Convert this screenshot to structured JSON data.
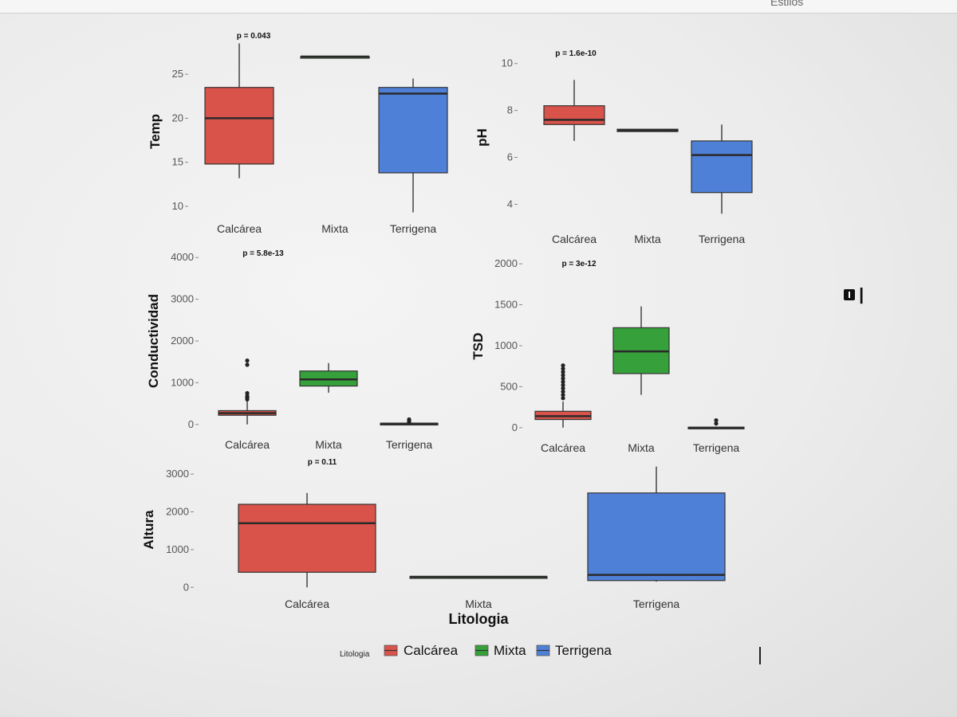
{
  "window": {
    "styles_label": "Estilos"
  },
  "colors": {
    "Calcárea": "#d9534a",
    "Mixta": "#36a03a",
    "Terrigena": "#4f80d8"
  },
  "chart_data": [
    {
      "type": "box",
      "ylabel": "Temp",
      "pvalue_label": "p = 0.043",
      "categories": [
        "Calcárea",
        "Mixta",
        "Terrigena"
      ],
      "yticks": [
        10,
        15,
        20,
        25
      ],
      "ylim": [
        9,
        28
      ],
      "boxes": [
        {
          "category": "Calcárea",
          "min": 13.2,
          "q1": 14.8,
          "median": 20.0,
          "q3": 23.5,
          "max": 28.5,
          "outliers": []
        },
        {
          "category": "Mixta",
          "min": 27.0,
          "q1": 27.0,
          "median": 27.0,
          "q3": 27.0,
          "max": 27.0,
          "outliers": []
        },
        {
          "category": "Terrigena",
          "min": 9.3,
          "q1": 13.8,
          "median": 22.8,
          "q3": 23.5,
          "max": 24.5,
          "outliers": []
        }
      ]
    },
    {
      "type": "box",
      "ylabel": "pH",
      "pvalue_label": "p = 1.6e-10",
      "categories": [
        "Calcárea",
        "Mixta",
        "Terrigena"
      ],
      "yticks": [
        4,
        6,
        8,
        10
      ],
      "ylim": [
        3.2,
        10.5
      ],
      "boxes": [
        {
          "category": "Calcárea",
          "min": 6.7,
          "q1": 7.4,
          "median": 7.6,
          "q3": 8.2,
          "max": 9.3,
          "outliers": []
        },
        {
          "category": "Mixta",
          "min": 7.1,
          "q1": 7.1,
          "median": 7.15,
          "q3": 7.2,
          "max": 7.2,
          "outliers": []
        },
        {
          "category": "Terrigena",
          "min": 3.6,
          "q1": 4.5,
          "median": 6.1,
          "q3": 6.7,
          "max": 7.4,
          "outliers": []
        }
      ]
    },
    {
      "type": "box",
      "ylabel": "Conductividad",
      "pvalue_label": "p = 5.8e-13",
      "categories": [
        "Calcárea",
        "Mixta",
        "Terrigena"
      ],
      "yticks": [
        0,
        1000,
        2000,
        3000,
        4000
      ],
      "ylim": [
        -100,
        4100
      ],
      "boxes": [
        {
          "category": "Calcárea",
          "min": 0,
          "q1": 220,
          "median": 270,
          "q3": 330,
          "max": 700,
          "outliers": [
            1430,
            1530,
            600,
            640,
            680,
            750
          ]
        },
        {
          "category": "Mixta",
          "min": 760,
          "q1": 920,
          "median": 1080,
          "q3": 1280,
          "max": 1470,
          "outliers": []
        },
        {
          "category": "Terrigena",
          "min": 10,
          "q1": 15,
          "median": 20,
          "q3": 25,
          "max": 30,
          "outliers": [
            60,
            90,
            120
          ]
        }
      ]
    },
    {
      "type": "box",
      "ylabel": "TSD",
      "pvalue_label": "p = 3e-12",
      "categories": [
        "Calcárea",
        "Mixta",
        "Terrigena"
      ],
      "yticks": [
        0,
        500,
        1000,
        1500,
        2000
      ],
      "ylim": [
        -60,
        2050
      ],
      "boxes": [
        {
          "category": "Calcárea",
          "min": 0,
          "q1": 100,
          "median": 140,
          "q3": 200,
          "max": 320,
          "outliers": [
            360,
            400,
            440,
            480,
            520,
            560,
            600,
            640,
            680,
            720,
            760
          ]
        },
        {
          "category": "Mixta",
          "min": 400,
          "q1": 660,
          "median": 930,
          "q3": 1220,
          "max": 1480,
          "outliers": []
        },
        {
          "category": "Terrigena",
          "min": 0,
          "q1": 0,
          "median": 0,
          "q3": 5,
          "max": 10,
          "outliers": [
            50,
            90
          ]
        }
      ]
    },
    {
      "type": "box",
      "ylabel": "Altura",
      "xlabel": "Litologia",
      "pvalue_label": "p = 0.11",
      "categories": [
        "Calcárea",
        "Mixta",
        "Terrigena"
      ],
      "yticks": [
        0,
        1000,
        2000,
        3000
      ],
      "ylim": [
        -100,
        3150
      ],
      "boxes": [
        {
          "category": "Calcárea",
          "min": 0,
          "q1": 400,
          "median": 1700,
          "q3": 2200,
          "max": 2500,
          "outliers": []
        },
        {
          "category": "Mixta",
          "min": 280,
          "q1": 280,
          "median": 280,
          "q3": 280,
          "max": 280,
          "outliers": []
        },
        {
          "category": "Terrigena",
          "min": 150,
          "q1": 180,
          "median": 330,
          "q3": 2500,
          "max": 3200,
          "outliers": []
        }
      ]
    }
  ],
  "legend": {
    "title": "Litologia",
    "items": [
      "Calcárea",
      "Mixta",
      "Terrigena"
    ]
  }
}
